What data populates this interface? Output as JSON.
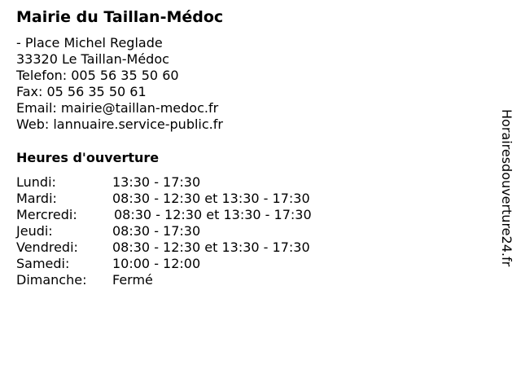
{
  "title": "Mairie du Taillan-Médoc",
  "address": {
    "street": "- Place Michel Reglade",
    "city": "33320 Le Taillan-Médoc",
    "phone": "Telefon: 005 56 35 50 60",
    "fax": "Fax: 05 56 35 50 61",
    "email": "Email: mairie@taillan-medoc.fr",
    "web": "Web: lannuaire.service-public.fr"
  },
  "hours_title": "Heures d'ouverture",
  "hours": [
    {
      "day": "Lundi:",
      "time": "13:30 - 17:30"
    },
    {
      "day": "Mardi:",
      "time": "08:30 - 12:30 et 13:30 - 17:30"
    },
    {
      "day": "Mercredi:",
      "time": "08:30 - 12:30 et 13:30 - 17:30"
    },
    {
      "day": "Jeudi:",
      "time": "08:30 - 17:30"
    },
    {
      "day": "Vendredi:",
      "time": "08:30 - 12:30 et 13:30 - 17:30"
    },
    {
      "day": "Samedi:",
      "time": "10:00 - 12:00"
    },
    {
      "day": "Dimanche:",
      "time": "Fermé"
    }
  ],
  "side_brand": "Horairesdouverture24.fr"
}
